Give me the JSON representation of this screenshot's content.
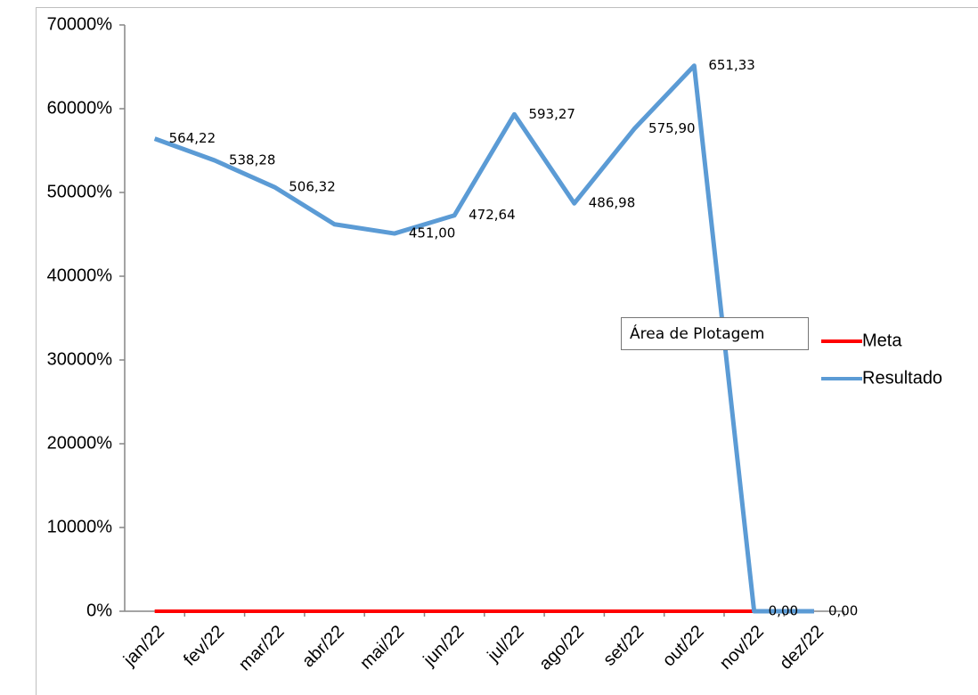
{
  "chart_data": {
    "type": "line",
    "annotation": "Área de Plotagem",
    "categories": [
      "jan/22",
      "fev/22",
      "mar/22",
      "abr/22",
      "mai/22",
      "jun/22",
      "jul/22",
      "ago/22",
      "set/22",
      "out/22",
      "nov/22",
      "dez/22"
    ],
    "series": [
      {
        "name": "Meta",
        "color": "#ff0000",
        "values": [
          0,
          0,
          0,
          0,
          0,
          0,
          0,
          0,
          0,
          0,
          0,
          0
        ]
      },
      {
        "name": "Resultado",
        "color": "#5b9bd5",
        "values": [
          56422,
          53828,
          50632,
          46200,
          45100,
          47264,
          59327,
          48698,
          57590,
          65133,
          0,
          0
        ],
        "value_labels": [
          "564,22",
          "538,28",
          "506,32",
          null,
          "451,00",
          "472,64",
          "593,27",
          "486,98",
          "575,90",
          "651,33",
          "0,00",
          "0,00"
        ]
      }
    ],
    "ylim": [
      0,
      70000
    ],
    "yticks": [
      {
        "value": 0,
        "label": "0%"
      },
      {
        "value": 10000,
        "label": "10000%"
      },
      {
        "value": 20000,
        "label": "20000%"
      },
      {
        "value": 30000,
        "label": "30000%"
      },
      {
        "value": 40000,
        "label": "40000%"
      },
      {
        "value": 50000,
        "label": "50000%"
      },
      {
        "value": 60000,
        "label": "60000%"
      },
      {
        "value": 70000,
        "label": "70000%"
      }
    ],
    "grid": false,
    "legend": "right"
  }
}
